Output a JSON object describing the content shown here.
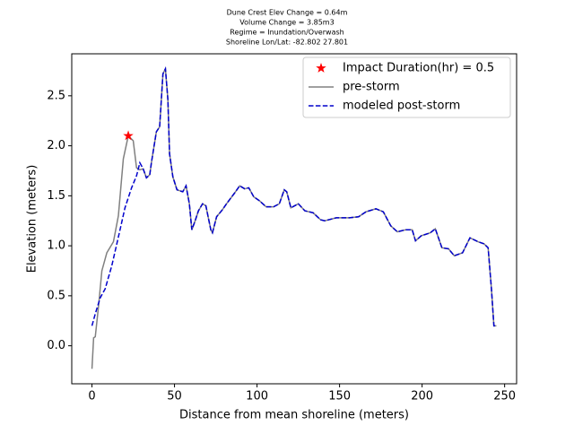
{
  "chart_data": {
    "type": "line",
    "title": [
      "Dune Crest Elev Change = 0.64m",
      "Volume Change = 3.85m3",
      "Regime = Inundation/Overwash",
      "Shoreline Lon/Lat: -82.802 27.801"
    ],
    "xlabel": "Distance from mean shoreline (meters)",
    "ylabel": "Elevation (meters)",
    "xlim": [
      -12.25,
      257.25
    ],
    "ylim": [
      -0.38,
      2.92
    ],
    "xticks": [
      0,
      50,
      100,
      150,
      200,
      250
    ],
    "yticks": [
      {
        "value": 0,
        "label": "0.0"
      },
      0.5,
      {
        "value": 1,
        "label": "1.0"
      },
      1.5,
      {
        "value": 2,
        "label": "2.0"
      },
      2.5
    ],
    "legend": "upper right",
    "marker": {
      "name": "Impact Duration(hr) = 0.5",
      "color": "#ff0000",
      "x": 22,
      "y": 2.1
    },
    "series": [
      {
        "name": "pre-storm",
        "color": "#808080",
        "dash": false,
        "x": [
          0,
          1,
          2,
          4,
          6,
          9,
          13,
          16,
          19,
          22,
          25,
          27,
          29,
          31,
          33,
          35,
          36,
          39,
          41,
          43,
          44.5,
          46,
          47,
          49,
          51.5,
          55,
          57,
          59,
          60.5,
          62.5,
          64.5,
          67,
          69,
          72,
          73,
          75.5,
          79,
          81.5,
          86.5,
          89.5,
          92.5,
          95,
          98,
          101.5,
          105.5,
          110,
          113.5,
          116.5,
          118,
          120.5,
          125,
          129,
          134,
          138.5,
          141,
          148,
          156,
          161.5,
          166,
          172,
          176.5,
          181,
          185,
          190,
          194,
          196,
          199.5,
          205,
          208,
          212,
          216,
          219.5,
          224.5,
          229,
          234,
          237.5,
          240,
          242,
          243.5,
          245
        ],
        "values": [
          -0.23,
          0.08,
          0.09,
          0.4,
          0.75,
          0.93,
          1.04,
          1.3,
          1.87,
          2.1,
          2.05,
          1.78,
          1.76,
          1.77,
          1.68,
          1.71,
          1.83,
          2.14,
          2.19,
          2.72,
          2.77,
          2.46,
          1.92,
          1.69,
          1.56,
          1.54,
          1.6,
          1.42,
          1.16,
          1.25,
          1.35,
          1.42,
          1.4,
          1.16,
          1.13,
          1.29,
          1.36,
          1.42,
          1.53,
          1.6,
          1.57,
          1.58,
          1.49,
          1.45,
          1.39,
          1.39,
          1.42,
          1.56,
          1.54,
          1.38,
          1.42,
          1.35,
          1.33,
          1.26,
          1.25,
          1.28,
          1.28,
          1.29,
          1.34,
          1.37,
          1.34,
          1.2,
          1.14,
          1.16,
          1.16,
          1.05,
          1.1,
          1.13,
          1.17,
          0.98,
          0.97,
          0.9,
          0.93,
          1.08,
          1.04,
          1.02,
          0.98,
          0.57,
          0.2,
          0.2
        ]
      },
      {
        "name": "modeled post-storm",
        "color": "#0000cc",
        "dash": true,
        "x": [
          0,
          2,
          5,
          8,
          12,
          17,
          20,
          24,
          27,
          29,
          31,
          33,
          35,
          36,
          39,
          41,
          43,
          44.5,
          46,
          47,
          49,
          51.5,
          55,
          57,
          59,
          60.5,
          62.5,
          64.5,
          67,
          69,
          72,
          73,
          75.5,
          79,
          81.5,
          86.5,
          89.5,
          92.5,
          95,
          98,
          101.5,
          105.5,
          110,
          113.5,
          116.5,
          118,
          120.5,
          125,
          129,
          134,
          138.5,
          141,
          148,
          156,
          161.5,
          166,
          172,
          176.5,
          181,
          185,
          190,
          194,
          196,
          199.5,
          205,
          208,
          212,
          216,
          219.5,
          224.5,
          229,
          234,
          237.5,
          240,
          242,
          243.5,
          245
        ],
        "values": [
          0.2,
          0.32,
          0.48,
          0.57,
          0.8,
          1.16,
          1.38,
          1.58,
          1.7,
          1.83,
          1.77,
          1.68,
          1.71,
          1.83,
          2.14,
          2.19,
          2.72,
          2.77,
          2.46,
          1.92,
          1.69,
          1.56,
          1.54,
          1.6,
          1.42,
          1.16,
          1.25,
          1.35,
          1.42,
          1.4,
          1.16,
          1.13,
          1.29,
          1.36,
          1.42,
          1.53,
          1.6,
          1.57,
          1.58,
          1.49,
          1.45,
          1.39,
          1.39,
          1.42,
          1.56,
          1.54,
          1.38,
          1.42,
          1.35,
          1.33,
          1.26,
          1.25,
          1.28,
          1.28,
          1.29,
          1.34,
          1.37,
          1.34,
          1.2,
          1.14,
          1.16,
          1.16,
          1.05,
          1.1,
          1.13,
          1.17,
          0.98,
          0.97,
          0.9,
          0.93,
          1.08,
          1.04,
          1.02,
          0.98,
          0.57,
          0.2,
          0.2
        ]
      }
    ]
  }
}
